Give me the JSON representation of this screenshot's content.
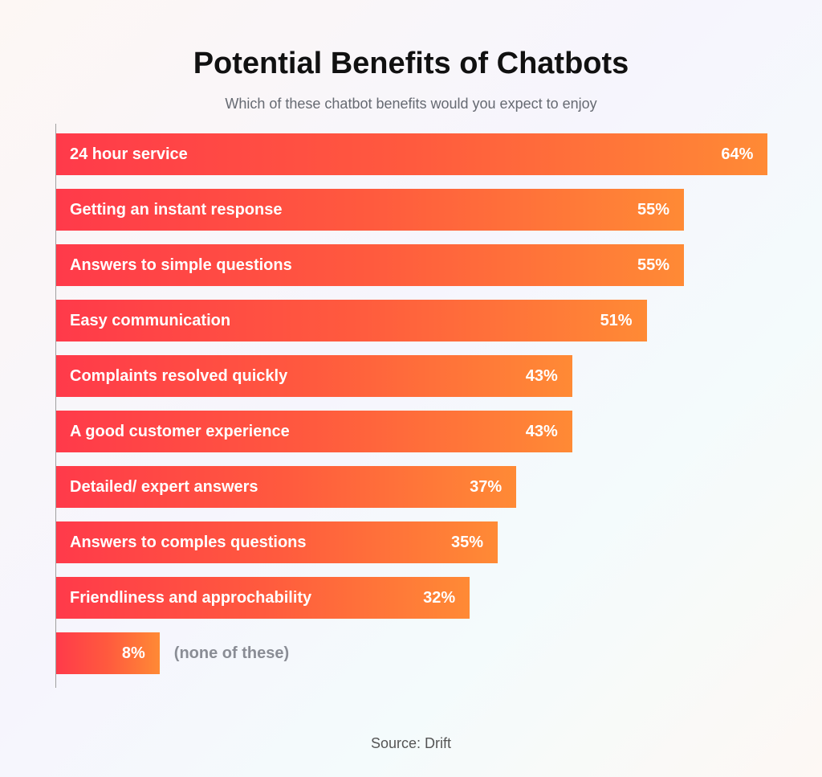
{
  "chart_data": {
    "type": "bar",
    "orientation": "horizontal",
    "title": "Potential Benefits of Chatbots",
    "subtitle": "Which of these chatbot benefits would you expect to enjoy",
    "categories": [
      "24 hour service",
      "Getting an instant response",
      "Answers to simple questions",
      "Easy communication",
      "Complaints resolved quickly",
      "A good customer experience",
      "Detailed/ expert answers",
      "Answers to comples questions",
      "Friendliness and approchability",
      "(none of these)"
    ],
    "values": [
      64,
      55,
      55,
      51,
      43,
      43,
      37,
      35,
      32,
      8
    ],
    "value_labels": [
      "64%",
      "55%",
      "55%",
      "51%",
      "43%",
      "43%",
      "37%",
      "35%",
      "32%",
      "8%"
    ],
    "unit": "%",
    "xlabel": "",
    "ylabel": "",
    "grid": false,
    "legend": "none",
    "source": "Source: Drift",
    "colors": {
      "bar_start": "#ff3a4a",
      "bar_end": "#ff8a35",
      "outside_label": "#8a8d95"
    }
  }
}
